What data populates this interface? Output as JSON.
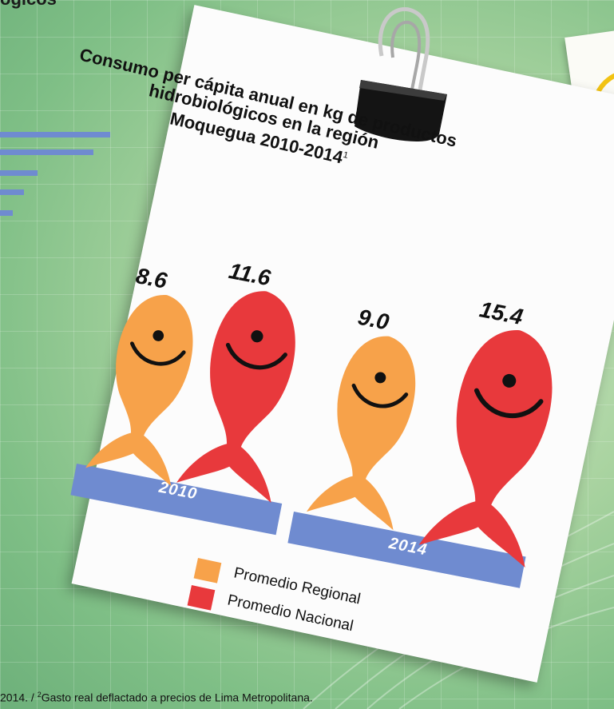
{
  "page": {
    "top_title": "ógicos",
    "footnote_text": "2014.  /  ",
    "footnote_sup": "2",
    "footnote_rest": "Gasto real deflactado a precios de Lima Metropolitana."
  },
  "colors": {
    "regional": "#f7a24a",
    "nacional": "#e8393c",
    "category_bar": "#6f8bd0",
    "deco_bars": "#6f8bd0"
  },
  "chart_data": {
    "type": "bar",
    "title_lines": [
      "Consumo per cápita anual en kg de productos",
      "hidrobiológicos en la región",
      "Moquegua 2010-2014"
    ],
    "title_sup": "1",
    "categories": [
      "2010",
      "2014"
    ],
    "series": [
      {
        "name": "Promedio Regional",
        "color": "#f7a24a",
        "values": [
          8.6,
          9.0
        ],
        "labels": [
          "8.6",
          "9.0"
        ]
      },
      {
        "name": "Promedio Nacional",
        "color": "#e8393c",
        "values": [
          11.6,
          15.4
        ],
        "labels": [
          "11.6",
          "15.4"
        ]
      }
    ],
    "legend": [
      "Promedio Regional",
      "Promedio Nacional"
    ]
  }
}
